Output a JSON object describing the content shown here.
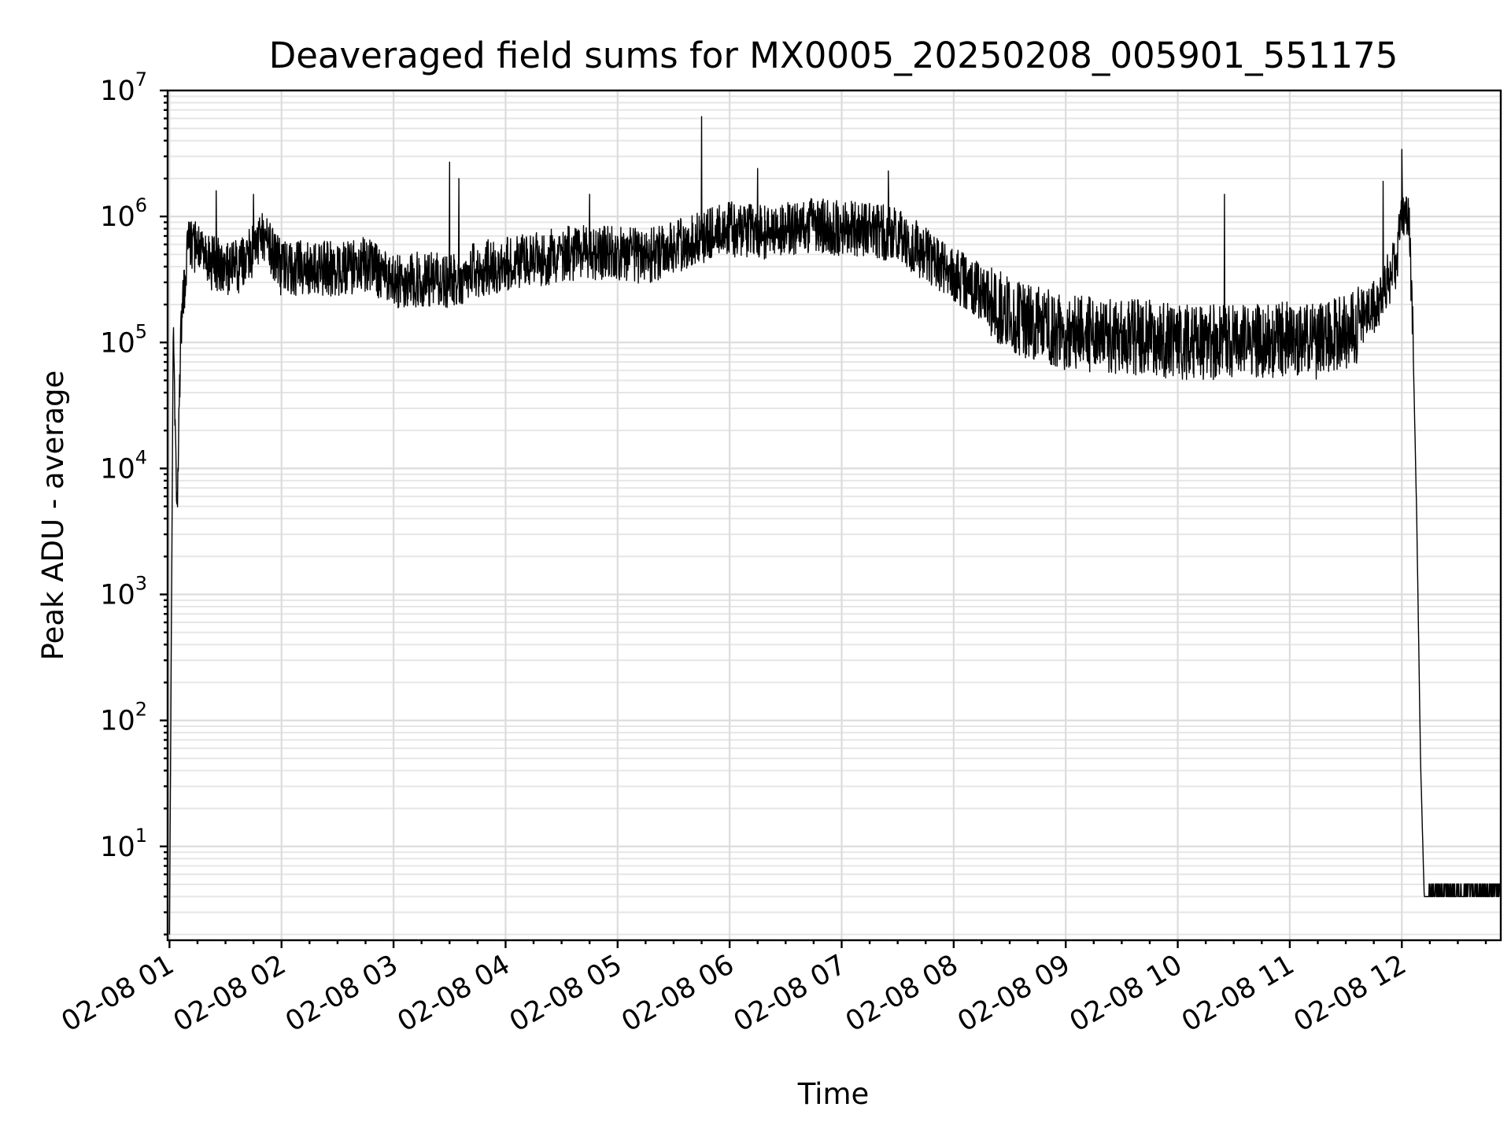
{
  "chart_data": {
    "type": "line",
    "title": "Deaveraged field sums for MX0005_20250208_005901_551175",
    "xlabel": "Time",
    "ylabel": "Peak ADU - average",
    "yscale": "log",
    "xlim": [
      "2025-02-08 00:59",
      "2025-02-08 12:53"
    ],
    "ylim": [
      1.8,
      10000000
    ],
    "grid": true,
    "x_tick_labels": [
      "02-08 01",
      "02-08 02",
      "02-08 03",
      "02-08 04",
      "02-08 05",
      "02-08 06",
      "02-08 07",
      "02-08 08",
      "02-08 09",
      "02-08 10",
      "02-08 11",
      "02-08 12"
    ],
    "y_tick_labels": [
      {
        "base": "10",
        "exp": "1"
      },
      {
        "base": "10",
        "exp": "2"
      },
      {
        "base": "10",
        "exp": "3"
      },
      {
        "base": "10",
        "exp": "4"
      },
      {
        "base": "10",
        "exp": "5"
      },
      {
        "base": "10",
        "exp": "6"
      },
      {
        "base": "10",
        "exp": "7"
      }
    ],
    "series": [
      {
        "color": "#000000",
        "t": [
          "01:00",
          "01:02",
          "01:04",
          "01:06",
          "01:08",
          "01:10",
          "01:15",
          "01:20",
          "01:30",
          "01:40",
          "01:50",
          "02:00",
          "02:15",
          "02:30",
          "02:45",
          "03:00",
          "03:15",
          "03:30",
          "03:45",
          "04:00",
          "04:15",
          "04:30",
          "04:45",
          "05:00",
          "05:15",
          "05:30",
          "05:45",
          "06:00",
          "06:15",
          "06:30",
          "06:45",
          "07:00",
          "07:15",
          "07:30",
          "07:45",
          "08:00",
          "08:15",
          "08:30",
          "08:45",
          "09:00",
          "09:15",
          "09:30",
          "09:45",
          "10:00",
          "10:15",
          "10:30",
          "10:45",
          "11:00",
          "11:15",
          "11:30",
          "11:40",
          "11:50",
          "11:57",
          "12:00",
          "12:02",
          "12:04",
          "12:06",
          "12:08",
          "12:10",
          "12:12",
          "12:13",
          "12:20",
          "12:30",
          "12:40",
          "12:50",
          "12:53"
        ],
        "y": [
          2,
          120000,
          3500,
          120000,
          300000,
          550000,
          600000,
          450000,
          380000,
          420000,
          700000,
          380000,
          400000,
          380000,
          420000,
          300000,
          320000,
          300000,
          380000,
          420000,
          450000,
          500000,
          520000,
          500000,
          480000,
          550000,
          700000,
          800000,
          750000,
          800000,
          850000,
          800000,
          800000,
          700000,
          500000,
          350000,
          250000,
          160000,
          140000,
          120000,
          115000,
          110000,
          110000,
          100000,
          100000,
          105000,
          100000,
          110000,
          100000,
          120000,
          150000,
          250000,
          450000,
          1100000,
          1000000,
          900000,
          100000,
          4000,
          50,
          4,
          4,
          4,
          4,
          4,
          4,
          4
        ],
        "peaks": [
          {
            "t": "05:45",
            "y": 6200000
          },
          {
            "t": "12:00",
            "y": 3400000
          },
          {
            "t": "03:30",
            "y": 2700000
          },
          {
            "t": "06:15",
            "y": 2400000
          },
          {
            "t": "07:25",
            "y": 2300000
          },
          {
            "t": "03:35",
            "y": 2000000
          },
          {
            "t": "11:50",
            "y": 1900000
          },
          {
            "t": "01:25",
            "y": 1600000
          },
          {
            "t": "10:25",
            "y": 1500000
          },
          {
            "t": "01:45",
            "y": 1500000
          },
          {
            "t": "04:45",
            "y": 1500000
          }
        ]
      }
    ]
  }
}
